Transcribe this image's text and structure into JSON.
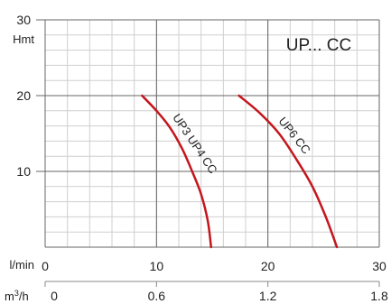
{
  "chart_data": {
    "type": "line",
    "annotation": "UP... CC",
    "ylabel": "Hmt",
    "xlabel": "l/min",
    "x2label_main": "m",
    "x2label_sup": "3",
    "x2label_tail": "/h",
    "xlim": [
      0,
      30
    ],
    "ylim": [
      0,
      30
    ],
    "y_ticks": [
      10,
      20,
      30
    ],
    "x_ticks": [
      0,
      10,
      20,
      30
    ],
    "x2_ticks": [
      "0",
      "0.6",
      "1.2",
      "1.8"
    ],
    "grid": true,
    "colors": {
      "curve": "#c4161c",
      "grid_major": "#666666",
      "grid_minor": "#cfcfcf"
    },
    "series": [
      {
        "name": "UP3 UP4 CC",
        "x": [
          8.7,
          10.0,
          11.2,
          12.3,
          13.2,
          14.0,
          14.6,
          14.9
        ],
        "y": [
          20,
          18,
          15.8,
          13,
          10,
          7,
          3.5,
          0
        ]
      },
      {
        "name": "UP6 CC",
        "x": [
          17.4,
          19.2,
          21.0,
          22.6,
          24.0,
          25.2,
          26.2
        ],
        "y": [
          20,
          17.8,
          15,
          11.5,
          8,
          4,
          0
        ]
      }
    ]
  }
}
